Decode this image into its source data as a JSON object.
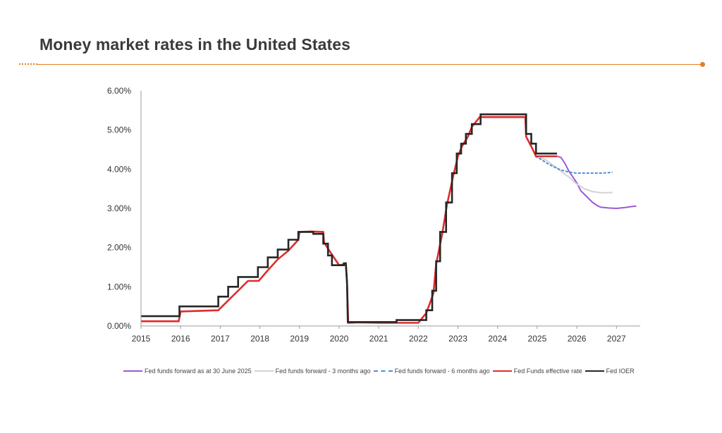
{
  "header": {
    "title": "Money market rates in the United States"
  },
  "colors": {
    "accent": "#e67e22",
    "axis": "#9a9a9a"
  },
  "chart_data": {
    "type": "line",
    "title": "Money market rates in the United States",
    "xlabel": "",
    "ylabel": "",
    "xlim": [
      2015,
      2027.6
    ],
    "ylim": [
      0,
      6
    ],
    "x_ticks": [
      "2015",
      "2016",
      "2017",
      "2018",
      "2019",
      "2020",
      "2021",
      "2022",
      "2023",
      "2024",
      "2025",
      "2026",
      "2027"
    ],
    "y_ticks": [
      "0.00%",
      "1.00%",
      "2.00%",
      "3.00%",
      "4.00%",
      "5.00%",
      "6.00%"
    ],
    "grid": false,
    "legend_position": "bottom",
    "series": [
      {
        "name": "Fed funds forward as at 30 June 2025",
        "color": "#9b59d6",
        "style": "solid",
        "points": [
          [
            2025.5,
            4.33
          ],
          [
            2025.6,
            4.3
          ],
          [
            2025.7,
            4.15
          ],
          [
            2025.8,
            3.95
          ],
          [
            2025.9,
            3.8
          ],
          [
            2026.0,
            3.65
          ],
          [
            2026.1,
            3.45
          ],
          [
            2026.2,
            3.35
          ],
          [
            2026.3,
            3.25
          ],
          [
            2026.4,
            3.15
          ],
          [
            2026.5,
            3.08
          ],
          [
            2026.6,
            3.03
          ],
          [
            2026.8,
            3.01
          ],
          [
            2027.0,
            3.0
          ],
          [
            2027.2,
            3.02
          ],
          [
            2027.4,
            3.05
          ],
          [
            2027.5,
            3.06
          ]
        ]
      },
      {
        "name": "Fed funds forward - 3 months ago",
        "color": "#d3d3d3",
        "style": "solid",
        "points": [
          [
            2025.0,
            4.33
          ],
          [
            2025.2,
            4.25
          ],
          [
            2025.4,
            4.1
          ],
          [
            2025.6,
            3.95
          ],
          [
            2025.8,
            3.8
          ],
          [
            2026.0,
            3.62
          ],
          [
            2026.2,
            3.5
          ],
          [
            2026.4,
            3.43
          ],
          [
            2026.6,
            3.4
          ],
          [
            2026.8,
            3.4
          ],
          [
            2026.9,
            3.41
          ]
        ]
      },
      {
        "name": "Fed funds forward - 6 months ago",
        "color": "#4a90d9",
        "style": "dashed",
        "points": [
          [
            2024.95,
            4.33
          ],
          [
            2025.1,
            4.25
          ],
          [
            2025.25,
            4.15
          ],
          [
            2025.4,
            4.07
          ],
          [
            2025.55,
            4.0
          ],
          [
            2025.7,
            3.95
          ],
          [
            2025.85,
            3.92
          ],
          [
            2026.0,
            3.9
          ],
          [
            2026.2,
            3.9
          ],
          [
            2026.4,
            3.9
          ],
          [
            2026.6,
            3.9
          ],
          [
            2026.8,
            3.91
          ],
          [
            2026.9,
            3.92
          ]
        ]
      },
      {
        "name": "Fed Funds effective rate",
        "color": "#e02b2b",
        "style": "solid",
        "points": [
          [
            2015.0,
            0.12
          ],
          [
            2015.95,
            0.12
          ],
          [
            2016.0,
            0.37
          ],
          [
            2016.95,
            0.4
          ],
          [
            2017.2,
            0.65
          ],
          [
            2017.45,
            0.9
          ],
          [
            2017.7,
            1.15
          ],
          [
            2017.97,
            1.15
          ],
          [
            2018.2,
            1.42
          ],
          [
            2018.45,
            1.7
          ],
          [
            2018.72,
            1.92
          ],
          [
            2018.97,
            2.2
          ],
          [
            2019.0,
            2.4
          ],
          [
            2019.3,
            2.41
          ],
          [
            2019.6,
            2.4
          ],
          [
            2019.62,
            2.13
          ],
          [
            2019.8,
            1.85
          ],
          [
            2020.0,
            1.55
          ],
          [
            2020.17,
            1.58
          ],
          [
            2020.2,
            1.1
          ],
          [
            2020.23,
            0.08
          ],
          [
            2020.5,
            0.09
          ],
          [
            2021.0,
            0.08
          ],
          [
            2021.5,
            0.08
          ],
          [
            2022.0,
            0.08
          ],
          [
            2022.2,
            0.33
          ],
          [
            2022.38,
            0.83
          ],
          [
            2022.45,
            1.58
          ],
          [
            2022.6,
            2.33
          ],
          [
            2022.72,
            3.08
          ],
          [
            2022.88,
            3.83
          ],
          [
            2023.0,
            4.33
          ],
          [
            2023.1,
            4.58
          ],
          [
            2023.25,
            4.83
          ],
          [
            2023.35,
            5.08
          ],
          [
            2023.55,
            5.33
          ],
          [
            2024.0,
            5.33
          ],
          [
            2024.7,
            5.33
          ],
          [
            2024.72,
            4.83
          ],
          [
            2024.85,
            4.58
          ],
          [
            2024.97,
            4.33
          ],
          [
            2025.5,
            4.33
          ]
        ]
      },
      {
        "name": "Fed IOER",
        "color": "#262626",
        "style": "solid",
        "points": [
          [
            2015.0,
            0.25
          ],
          [
            2015.97,
            0.25
          ],
          [
            2015.97,
            0.5
          ],
          [
            2016.95,
            0.5
          ],
          [
            2016.95,
            0.75
          ],
          [
            2017.2,
            0.75
          ],
          [
            2017.2,
            1.0
          ],
          [
            2017.45,
            1.0
          ],
          [
            2017.45,
            1.25
          ],
          [
            2017.95,
            1.25
          ],
          [
            2017.95,
            1.5
          ],
          [
            2018.2,
            1.5
          ],
          [
            2018.2,
            1.75
          ],
          [
            2018.45,
            1.75
          ],
          [
            2018.45,
            1.95
          ],
          [
            2018.72,
            1.95
          ],
          [
            2018.72,
            2.2
          ],
          [
            2018.97,
            2.2
          ],
          [
            2018.97,
            2.4
          ],
          [
            2019.35,
            2.4
          ],
          [
            2019.35,
            2.35
          ],
          [
            2019.6,
            2.35
          ],
          [
            2019.6,
            2.1
          ],
          [
            2019.72,
            2.1
          ],
          [
            2019.72,
            1.8
          ],
          [
            2019.82,
            1.8
          ],
          [
            2019.82,
            1.55
          ],
          [
            2020.12,
            1.55
          ],
          [
            2020.12,
            1.6
          ],
          [
            2020.17,
            1.6
          ],
          [
            2020.2,
            1.1
          ],
          [
            2020.22,
            0.1
          ],
          [
            2021.45,
            0.1
          ],
          [
            2021.45,
            0.15
          ],
          [
            2022.2,
            0.15
          ],
          [
            2022.2,
            0.4
          ],
          [
            2022.35,
            0.4
          ],
          [
            2022.35,
            0.9
          ],
          [
            2022.45,
            0.9
          ],
          [
            2022.45,
            1.65
          ],
          [
            2022.55,
            1.65
          ],
          [
            2022.55,
            2.4
          ],
          [
            2022.7,
            2.4
          ],
          [
            2022.7,
            3.15
          ],
          [
            2022.85,
            3.15
          ],
          [
            2022.85,
            3.9
          ],
          [
            2022.97,
            3.9
          ],
          [
            2022.97,
            4.4
          ],
          [
            2023.08,
            4.4
          ],
          [
            2023.08,
            4.65
          ],
          [
            2023.2,
            4.65
          ],
          [
            2023.2,
            4.9
          ],
          [
            2023.35,
            4.9
          ],
          [
            2023.35,
            5.15
          ],
          [
            2023.57,
            5.15
          ],
          [
            2023.57,
            5.4
          ],
          [
            2024.72,
            5.4
          ],
          [
            2024.72,
            4.9
          ],
          [
            2024.85,
            4.9
          ],
          [
            2024.85,
            4.65
          ],
          [
            2024.97,
            4.65
          ],
          [
            2024.97,
            4.4
          ],
          [
            2025.5,
            4.4
          ]
        ]
      }
    ]
  }
}
